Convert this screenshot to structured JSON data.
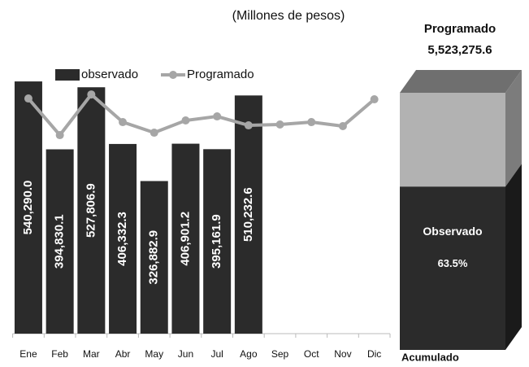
{
  "chart_data": {
    "type": "bar",
    "subtitle": "(Millones de pesos)",
    "categories": [
      "Ene",
      "Feb",
      "Mar",
      "Abr",
      "May",
      "Jun",
      "Jul",
      "Ago",
      "Sep",
      "Oct",
      "Nov",
      "Dic"
    ],
    "series": [
      {
        "name": "observado",
        "type": "bar",
        "color": "#2b2b2b",
        "values": [
          540290.0,
          394830.1,
          527806.9,
          406332.3,
          326882.9,
          406901.2,
          395161.9,
          510232.6,
          null,
          null,
          null,
          null
        ],
        "value_labels": [
          "540,290.0",
          "394,830.1",
          "527,806.9",
          "406,332.3",
          "326,882.9",
          "406,901.2",
          "395,161.9",
          "510,232.6",
          null,
          null,
          null,
          null
        ]
      },
      {
        "name": "Programado",
        "type": "line",
        "color": "#a6a6a6",
        "values": [
          503700,
          425300,
          512400,
          453200,
          430500,
          456700,
          465400,
          446200,
          448000,
          453200,
          444500,
          502000
        ]
      }
    ],
    "ylim": [
      0,
      550000
    ],
    "stack": {
      "title": "Programado",
      "total": 5523275.6,
      "total_label": "5,523,275.6",
      "segment": "Observado",
      "share": 63.5,
      "share_label": "63.5%",
      "xlabel": "Acumulado",
      "colors": {
        "top": "#6f6f6f",
        "rest": "#b2b2b2",
        "rest_side": "#7c7c7c",
        "segment": "#2b2b2b",
        "segment_side": "#1a1a1a"
      },
      "lim": [
        0,
        100
      ]
    }
  }
}
